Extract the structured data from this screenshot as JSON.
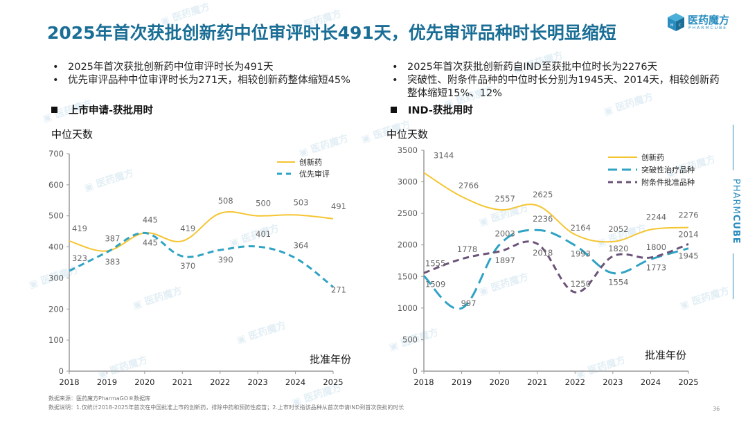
{
  "header": {
    "title": "2025年首次获批创新药中位审评时长491天，优先审评品种时长明显缩短",
    "logo_text": "医药魔方",
    "logo_sub": "PHARMCUBE"
  },
  "left_panel": {
    "bullets": [
      "2025年首次获批创新药中位审评时长为491天",
      "优先审评品种中位审评时长为271天，相较创新药整体缩短45%"
    ],
    "section_title": "上市申请-获批用时"
  },
  "right_panel": {
    "bullets": [
      "2025年首次获批创新药自IND至获批中位时长为2276天",
      "突破性、附条件品种的中位时长分别为1945天、2014天，相较创新药整体缩短15%、12%"
    ],
    "section_title": "IND-获批用时"
  },
  "side_brand": {
    "part1": "PHARM",
    "part2": "CUBE"
  },
  "watermark_text": "医药魔方",
  "footnotes": {
    "source": "数据来源：医药魔方PharmaGO®数据库",
    "note": "数据说明：1.仅统计2018-2025年首次在中国批准上市的创新药，排除中药和预防性疫苗；2.上市时长指该品种从首次申请IND到首次获批的时长"
  },
  "page_number": "36",
  "colors": {
    "title": "#1a6e96",
    "innovative": "#f5c531",
    "priority": "#2fa3c4",
    "breakthrough": "#2fa3c4",
    "conditional": "#6b5379",
    "axis": "#9a9a9a",
    "label": "#666666"
  },
  "chart_data": [
    {
      "type": "line",
      "title": "上市申请-获批用时",
      "ylabel": "中位天数",
      "xlabel": "批准年份",
      "x": [
        "2018",
        "2019",
        "2020",
        "2021",
        "2022",
        "2023",
        "2024",
        "2025"
      ],
      "ylim": [
        0,
        700
      ],
      "yticks": [
        "0",
        "100",
        "200",
        "300",
        "400",
        "500",
        "600",
        "700"
      ],
      "grid": false,
      "legend": "top-right",
      "series": [
        {
          "name": "创新药",
          "style": "solid",
          "color": "#f5c531",
          "values": [
            419,
            387,
            445,
            419,
            508,
            500,
            503,
            491
          ]
        },
        {
          "name": "优先审评",
          "style": "dashed",
          "color": "#2fa3c4",
          "values": [
            323,
            383,
            445,
            370,
            390,
            401,
            364,
            271
          ]
        }
      ]
    },
    {
      "type": "line",
      "title": "IND-获批用时",
      "ylabel": "中位天数",
      "xlabel": "批准年份",
      "x": [
        "2018",
        "2019",
        "2020",
        "2021",
        "2022",
        "2023",
        "2024",
        "2025"
      ],
      "ylim": [
        0,
        3500
      ],
      "yticks": [
        "0",
        "500",
        "1000",
        "1500",
        "2000",
        "2500",
        "3000",
        "3500"
      ],
      "grid": false,
      "legend": "top-right",
      "series": [
        {
          "name": "创新药",
          "style": "solid",
          "color": "#f5c531",
          "values": [
            3144,
            2766,
            2557,
            2625,
            2164,
            2052,
            2244,
            2276
          ]
        },
        {
          "name": "突破性治疗品种",
          "style": "long-dashed",
          "color": "#2fa3c4",
          "values": [
            1509,
            997,
            2003,
            2236,
            1993,
            1554,
            1773,
            1945
          ]
        },
        {
          "name": "附条件批准品种",
          "style": "dashed",
          "color": "#6b5379",
          "values": [
            1555,
            1778,
            1897,
            2018,
            1250,
            1820,
            1800,
            2014
          ]
        }
      ]
    }
  ]
}
